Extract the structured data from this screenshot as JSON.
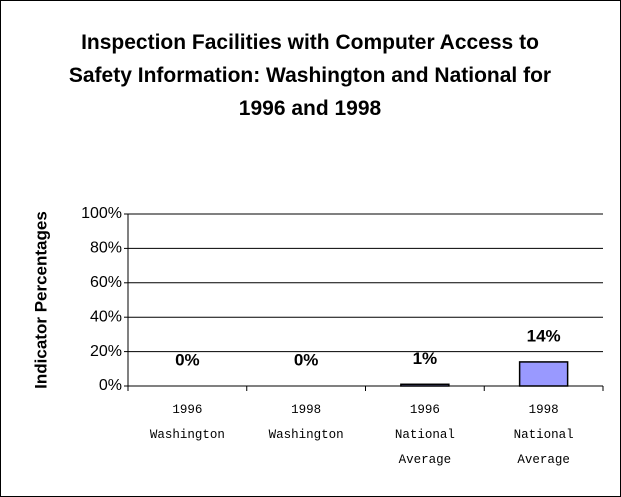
{
  "chart_data": {
    "type": "bar",
    "title": "Inspection Facilities with Computer Access to Safety Information: Washington and National for 1996 and 1998",
    "y_label": "Indicator Percentages",
    "categories": [
      "1996 Washington",
      "1998 Washington",
      "1996 National Average",
      "1998 National Average"
    ],
    "values": [
      0,
      0,
      1,
      14
    ],
    "value_labels": [
      "0%",
      "0%",
      "1%",
      "14%"
    ],
    "color": "#9999ff",
    "ylim": [
      0,
      100
    ],
    "yticks": [
      {
        "value": 0,
        "label": "0%"
      },
      {
        "value": 20,
        "label": "20%"
      },
      {
        "value": 40,
        "label": "40%"
      },
      {
        "value": 60,
        "label": "60%"
      },
      {
        "value": 80,
        "label": "80%"
      },
      {
        "value": 100,
        "label": "100%"
      }
    ],
    "grid": true
  }
}
